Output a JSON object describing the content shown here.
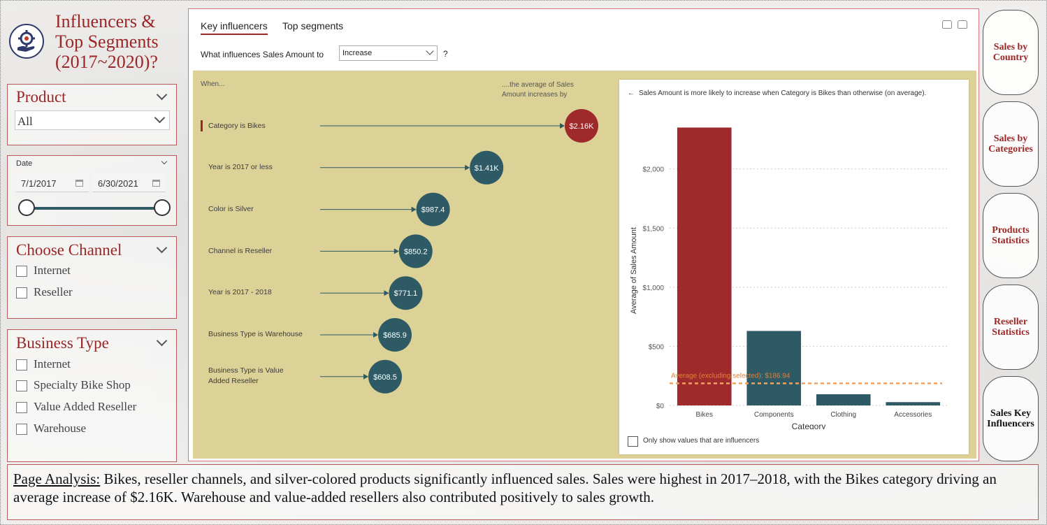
{
  "header": {
    "title": "Influencers & Top Segments (2017~2020)?"
  },
  "product_slicer": {
    "title": "Product",
    "value": "All"
  },
  "date_slicer": {
    "label": "Date",
    "start": "7/1/2017",
    "end": "6/30/2021",
    "range_fraction": [
      0.0,
      1.0
    ]
  },
  "channel_slicer": {
    "title": "Choose Channel",
    "options": [
      "Internet",
      "Reseller"
    ]
  },
  "business_slicer": {
    "title": "Business Type",
    "options": [
      "Internet",
      "Specialty Bike Shop",
      "Value Added Reseller",
      "Warehouse"
    ]
  },
  "visual": {
    "tabs": [
      "Key influencers",
      "Top segments"
    ],
    "question_label": "What influences Sales Amount to",
    "question_value": "Increase",
    "question_mark": "?",
    "when_label": "When...",
    "avg_label": "....the average of Sales Amount increases by",
    "influencers": [
      {
        "label": "Category is Bikes",
        "value_label": "$2.16K",
        "value": 2160,
        "selected": true
      },
      {
        "label": "Year is 2017 or less",
        "value_label": "$1.41K",
        "value": 1410,
        "selected": false
      },
      {
        "label": "Color is Silver",
        "value_label": "$987.4",
        "value": 987.4,
        "selected": false
      },
      {
        "label": "Channel is Reseller",
        "value_label": "$850.2",
        "value": 850.2,
        "selected": false
      },
      {
        "label": "Year is 2017 - 2018",
        "value_label": "$771.1",
        "value": 771.1,
        "selected": false
      },
      {
        "label": "Business Type is Warehouse",
        "value_label": "$685.9",
        "value": 685.9,
        "selected": false
      },
      {
        "label": "Business Type is Value Added Reseller",
        "value_label": "$608.5",
        "value": 608.5,
        "selected": false
      }
    ],
    "detail": {
      "title": "Sales Amount is more likely to increase when Category is Bikes than otherwise (on average).",
      "checkbox_label": "Only show values that are influencers"
    }
  },
  "chart_data": {
    "type": "bar",
    "categories": [
      "Bikes",
      "Components",
      "Clothing",
      "Accessories"
    ],
    "values": [
      2350,
      630,
      95,
      28
    ],
    "xlabel": "Category",
    "ylabel": "Average of Sales Amount",
    "ylim": [
      0,
      2400
    ],
    "yticks": [
      0,
      500,
      1000,
      1500,
      2000
    ],
    "ytick_labels": [
      "$0",
      "$500",
      "$1,000",
      "$1,500",
      "$2,000"
    ],
    "reference_line": {
      "label": "Average (excluding selected): $186.94",
      "value": 186.94
    },
    "colors": {
      "selected": "#9e2a2b",
      "other": "#2e5a66",
      "reference": "#f0a060"
    }
  },
  "nav": {
    "buttons": [
      "Sales by Country",
      "Sales by Categories",
      "Products Statistics",
      "Reseller Statistics",
      "Sales Key Influencers"
    ]
  },
  "analysis": {
    "lead": "Page Analysis:",
    "text": " Bikes, reseller channels, and silver-colored products significantly influenced sales. Sales were highest in 2017–2018, with the Bikes category driving an average increase of $2.16K. Warehouse and value-added resellers also contributed positively to sales growth."
  }
}
